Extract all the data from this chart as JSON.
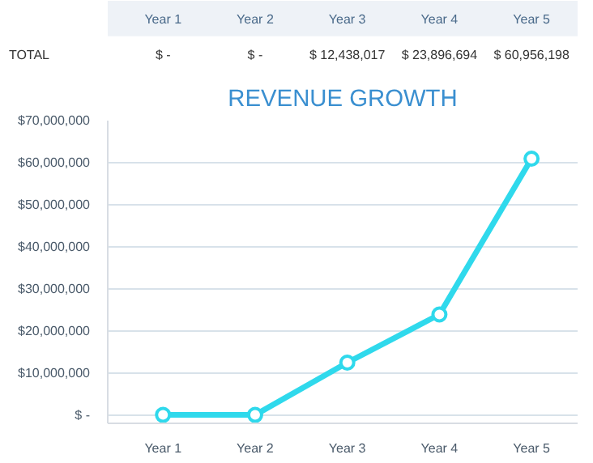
{
  "chart_data": {
    "type": "line",
    "title": "REVENUE GROWTH",
    "categories": [
      "Year 1",
      "Year 2",
      "Year 3",
      "Year 4",
      "Year 5"
    ],
    "values": [
      0,
      0,
      12438017,
      23896694,
      60956198
    ],
    "value_labels": [
      "$ -",
      "$ -",
      "$ 12,438,017",
      "$ 23,896,694",
      "$ 60,956,198"
    ],
    "annotations": [
      "TOTAL"
    ],
    "color": "#2fd9ec",
    "marker": "circle",
    "line_style": "solid",
    "grid": "y",
    "ylim": [
      -2000000,
      70000000
    ],
    "yticks": [
      {
        "value": 0,
        "label": "$ -"
      },
      {
        "value": 10000000,
        "label": "$10,000,000"
      },
      {
        "value": 20000000,
        "label": "$20,000,000"
      },
      {
        "value": 30000000,
        "label": "$30,000,000"
      },
      {
        "value": 40000000,
        "label": "$40,000,000"
      },
      {
        "value": 50000000,
        "label": "$50,000,000"
      },
      {
        "value": 60000000,
        "label": "$60,000,000"
      },
      {
        "value": 70000000,
        "label": "$70,000,000"
      }
    ]
  }
}
